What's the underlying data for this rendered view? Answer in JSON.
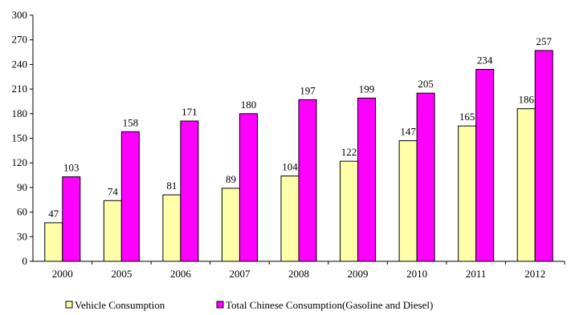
{
  "chart_data": {
    "type": "bar",
    "title": "",
    "xlabel": "",
    "ylabel": "",
    "categories": [
      "2000",
      "2005",
      "2006",
      "2007",
      "2008",
      "2009",
      "2010",
      "2011",
      "2012"
    ],
    "ylim": [
      0,
      300
    ],
    "yticks": [
      0,
      30,
      60,
      90,
      120,
      150,
      180,
      210,
      240,
      270,
      300
    ],
    "grid": false,
    "legend_position": "bottom",
    "series": [
      {
        "name": "Vehicle Consumption",
        "color": "#FFFFAA",
        "values": [
          47,
          74,
          81,
          89,
          104,
          122,
          147,
          165,
          186
        ]
      },
      {
        "name": "Total Chinese Consumption(Gasoline and Diesel)",
        "color": "#FF00FF",
        "values": [
          103,
          158,
          171,
          180,
          197,
          199,
          205,
          234,
          257
        ]
      }
    ]
  }
}
